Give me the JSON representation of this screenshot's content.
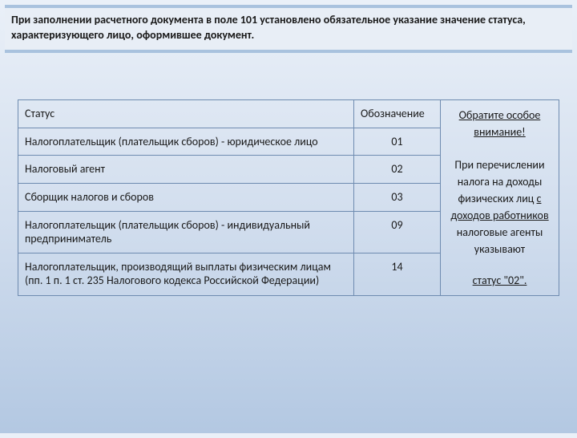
{
  "banner": {
    "text": "При заполнении расчетного документа в поле 101 установлено обязательное указание значение статуса, характеризующего лицо, оформившее документ."
  },
  "table": {
    "headers": {
      "status": "Статус",
      "code": "Обозначение"
    },
    "rows": [
      {
        "status": "Налогоплательщик (плательщик сборов) - юридическое лицо",
        "code": "01"
      },
      {
        "status": "Налоговый агент",
        "code": "02"
      },
      {
        "status": "Сборщик налогов и сборов",
        "code": "03"
      },
      {
        "status": "Налогоплательщик (плательщик сборов) - индивидуальный предприниматель",
        "code": "09"
      },
      {
        "status": "Налогоплательщик, производящий выплаты физическим лицам (пп. 1 п. 1 ст. 235 Налогового кодекса Российской Федерации)",
        "code": "14"
      }
    ]
  },
  "note": {
    "title": "Обратите особое внимание!",
    "body_pre": "При перечислении налога на доходы физических лиц ",
    "body_u": "с доходов работников",
    "body_post": " налоговые агенты указывают",
    "status": "статус \"02\"."
  },
  "colors": {
    "banner_border": "#a9c2de",
    "banner_bg": "#e8eef6",
    "table_border": "#6e8bb0",
    "bg_top": "#eaf0f8",
    "bg_bottom": "#b3c8e2",
    "text": "#1a1a1a"
  },
  "fonts": {
    "family": "Calibri",
    "banner_size_pt": 11,
    "body_size_pt": 10
  }
}
